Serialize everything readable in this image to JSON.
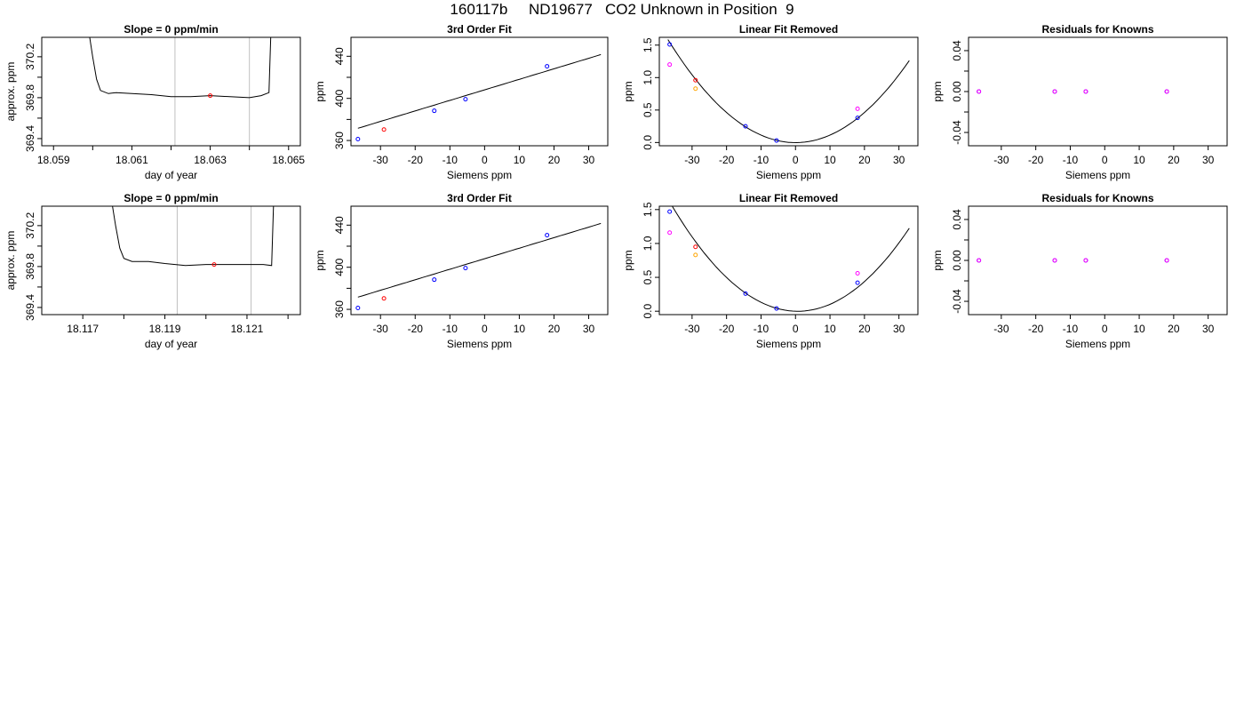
{
  "page": {
    "title": "160117b     ND19677   CO2 Unknown in Position  9"
  },
  "colors": {
    "line": "#000000",
    "grid": "#c0c0c0",
    "blue": "#0000ff",
    "red": "#ff0000",
    "magenta": "#ff00ff",
    "orange": "#ffa500"
  },
  "chart_data": [
    {
      "id": "r1-trace",
      "type": "line",
      "title": "Slope =  0  ppm/min",
      "xlabel": "day of year",
      "ylabel": "approx. ppm",
      "xlim": [
        18.0587,
        18.0653
      ],
      "ylim": [
        369.33,
        370.39
      ],
      "xticks": [
        18.059,
        18.06,
        18.061,
        18.062,
        18.063,
        18.064,
        18.065
      ],
      "xtick_labels": [
        "18.059",
        "",
        "18.061",
        "",
        "18.063",
        "",
        "18.065"
      ],
      "yticks": [
        369.4,
        369.6,
        369.8,
        370.0,
        370.2
      ],
      "ytick_labels": [
        "369.4",
        "",
        "369.8",
        "",
        "370.2"
      ],
      "vlines": [
        18.0621,
        18.064
      ],
      "trace": [
        [
          18.0599,
          370.45
        ],
        [
          18.06,
          370.2
        ],
        [
          18.0601,
          369.98
        ],
        [
          18.0602,
          369.87
        ],
        [
          18.0604,
          369.84
        ],
        [
          18.0606,
          369.85
        ],
        [
          18.061,
          369.84
        ],
        [
          18.0615,
          369.83
        ],
        [
          18.062,
          369.81
        ],
        [
          18.0625,
          369.81
        ],
        [
          18.063,
          369.82
        ],
        [
          18.0635,
          369.81
        ],
        [
          18.064,
          369.8
        ],
        [
          18.0643,
          369.82
        ],
        [
          18.0645,
          369.85
        ],
        [
          18.06455,
          370.45
        ]
      ],
      "points": [
        {
          "x": 18.063,
          "y": 369.82,
          "color": "red"
        }
      ]
    },
    {
      "id": "r1-fit",
      "type": "scatter",
      "title": "3rd Order Fit",
      "xlabel": "Siemens ppm",
      "ylabel": "ppm",
      "xlim": [
        -38.5,
        35.5
      ],
      "ylim": [
        355,
        458
      ],
      "xticks": [
        -30,
        -20,
        -10,
        0,
        10,
        20,
        30
      ],
      "xtick_labels": [
        "-30",
        "-20",
        "-10",
        "0",
        "10",
        "20",
        "30"
      ],
      "yticks": [
        360,
        380,
        400,
        420,
        440
      ],
      "ytick_labels": [
        "360",
        "",
        "400",
        "",
        "440"
      ],
      "fit": {
        "kind": "linear",
        "x0": -36.5,
        "x1": 33.5,
        "y_at_zero": 408.1,
        "slope": 1.0
      },
      "points": [
        {
          "x": -36.5,
          "y": 361.3,
          "color": "blue"
        },
        {
          "x": -29,
          "y": 370.4,
          "color": "red"
        },
        {
          "x": -14.5,
          "y": 388.2,
          "color": "blue"
        },
        {
          "x": -5.5,
          "y": 399.2,
          "color": "blue"
        },
        {
          "x": 18,
          "y": 430.5,
          "color": "blue"
        }
      ]
    },
    {
      "id": "r1-lin",
      "type": "scatter",
      "title": "Linear Fit Removed",
      "xlabel": "Siemens ppm",
      "ylabel": "ppm",
      "xlim": [
        -39.5,
        35.5
      ],
      "ylim": [
        -0.05,
        1.62
      ],
      "xticks": [
        -30,
        -20,
        -10,
        0,
        10,
        20,
        30
      ],
      "xtick_labels": [
        "-30",
        "-20",
        "-10",
        "0",
        "10",
        "20",
        "30"
      ],
      "yticks": [
        0,
        0.5,
        1.0,
        1.5
      ],
      "ytick_labels": [
        "0.0",
        "0.5",
        "1.0",
        "1.5"
      ],
      "fit": {
        "kind": "quadratic",
        "x0": -37,
        "x1": 33,
        "a": 0.00116,
        "b": 0.0,
        "c": -0.002
      },
      "points": [
        {
          "x": -36.5,
          "y": 1.51,
          "color": "blue"
        },
        {
          "x": -36.5,
          "y": 1.2,
          "color": "magenta"
        },
        {
          "x": -29,
          "y": 0.96,
          "color": "red"
        },
        {
          "x": -29,
          "y": 0.83,
          "color": "orange"
        },
        {
          "x": -14.5,
          "y": 0.25,
          "color": "blue"
        },
        {
          "x": -5.5,
          "y": 0.03,
          "color": "blue"
        },
        {
          "x": 18,
          "y": 0.38,
          "color": "blue"
        },
        {
          "x": 18,
          "y": 0.52,
          "color": "magenta"
        }
      ]
    },
    {
      "id": "r1-res",
      "type": "scatter",
      "title": "Residuals for Knowns",
      "xlabel": "Siemens ppm",
      "ylabel": "ppm",
      "xlim": [
        -39.5,
        35.5
      ],
      "ylim": [
        -0.053,
        0.053
      ],
      "xticks": [
        -30,
        -20,
        -10,
        0,
        10,
        20,
        30
      ],
      "xtick_labels": [
        "-30",
        "-20",
        "-10",
        "0",
        "10",
        "20",
        "30"
      ],
      "yticks": [
        -0.04,
        -0.02,
        0,
        0.02,
        0.04
      ],
      "ytick_labels": [
        "-0.04",
        "",
        "0.00",
        "",
        "0.04"
      ],
      "points": [
        {
          "x": -36.5,
          "y": 0,
          "color": "blue"
        },
        {
          "x": -36.5,
          "y": 0,
          "color": "magenta"
        },
        {
          "x": -14.5,
          "y": 0,
          "color": "blue"
        },
        {
          "x": -14.5,
          "y": 0,
          "color": "magenta"
        },
        {
          "x": -5.5,
          "y": 0,
          "color": "blue"
        },
        {
          "x": -5.5,
          "y": 0,
          "color": "magenta"
        },
        {
          "x": 18,
          "y": 0,
          "color": "blue"
        },
        {
          "x": 18,
          "y": 0,
          "color": "magenta"
        }
      ]
    },
    {
      "id": "r2-trace",
      "type": "line",
      "title": "Slope =  0  ppm/min",
      "xlabel": "day of year",
      "ylabel": "approx. ppm",
      "xlim": [
        18.116,
        18.1223
      ],
      "ylim": [
        369.33,
        370.39
      ],
      "xticks": [
        18.117,
        18.118,
        18.119,
        18.12,
        18.121,
        18.122
      ],
      "xtick_labels": [
        "18.117",
        "",
        "18.119",
        "",
        "18.121",
        ""
      ],
      "yticks": [
        369.4,
        369.6,
        369.8,
        370.0,
        370.2
      ],
      "ytick_labels": [
        "369.4",
        "",
        "369.8",
        "",
        "370.2"
      ],
      "vlines": [
        18.1193,
        18.1211
      ],
      "trace": [
        [
          18.1177,
          370.45
        ],
        [
          18.1178,
          370.2
        ],
        [
          18.1179,
          369.98
        ],
        [
          18.118,
          369.88
        ],
        [
          18.1182,
          369.85
        ],
        [
          18.1186,
          369.85
        ],
        [
          18.119,
          369.83
        ],
        [
          18.1195,
          369.81
        ],
        [
          18.12,
          369.82
        ],
        [
          18.1205,
          369.82
        ],
        [
          18.121,
          369.82
        ],
        [
          18.1214,
          369.82
        ],
        [
          18.1216,
          369.81
        ],
        [
          18.12165,
          370.45
        ]
      ],
      "points": [
        {
          "x": 18.1202,
          "y": 369.82,
          "color": "red"
        }
      ]
    },
    {
      "id": "r2-fit",
      "type": "scatter",
      "title": "3rd Order Fit",
      "xlabel": "Siemens ppm",
      "ylabel": "ppm",
      "xlim": [
        -38.5,
        35.5
      ],
      "ylim": [
        355,
        458
      ],
      "xticks": [
        -30,
        -20,
        -10,
        0,
        10,
        20,
        30
      ],
      "xtick_labels": [
        "-30",
        "-20",
        "-10",
        "0",
        "10",
        "20",
        "30"
      ],
      "yticks": [
        360,
        380,
        400,
        420,
        440
      ],
      "ytick_labels": [
        "360",
        "",
        "400",
        "",
        "440"
      ],
      "fit": {
        "kind": "linear",
        "x0": -36.5,
        "x1": 33.5,
        "y_at_zero": 408.1,
        "slope": 1.0
      },
      "points": [
        {
          "x": -36.5,
          "y": 361.3,
          "color": "blue"
        },
        {
          "x": -29,
          "y": 370.4,
          "color": "red"
        },
        {
          "x": -14.5,
          "y": 388.2,
          "color": "blue"
        },
        {
          "x": -5.5,
          "y": 399.2,
          "color": "blue"
        },
        {
          "x": 18,
          "y": 430.5,
          "color": "blue"
        }
      ]
    },
    {
      "id": "r2-lin",
      "type": "scatter",
      "title": "Linear Fit Removed",
      "xlabel": "Siemens ppm",
      "ylabel": "ppm",
      "xlim": [
        -39.5,
        35.5
      ],
      "ylim": [
        -0.05,
        1.55
      ],
      "xticks": [
        -30,
        -20,
        -10,
        0,
        10,
        20,
        30
      ],
      "xtick_labels": [
        "-30",
        "-20",
        "-10",
        "0",
        "10",
        "20",
        "30"
      ],
      "yticks": [
        0,
        0.5,
        1.0,
        1.5
      ],
      "ytick_labels": [
        "0.0",
        "0.5",
        "1.0",
        "1.5"
      ],
      "fit": {
        "kind": "quadratic",
        "x0": -37,
        "x1": 33,
        "a": 0.00117,
        "b": -0.0015,
        "c": 0.0
      },
      "points": [
        {
          "x": -36.5,
          "y": 1.47,
          "color": "blue"
        },
        {
          "x": -36.5,
          "y": 1.16,
          "color": "magenta"
        },
        {
          "x": -29,
          "y": 0.95,
          "color": "red"
        },
        {
          "x": -29,
          "y": 0.83,
          "color": "orange"
        },
        {
          "x": -14.5,
          "y": 0.26,
          "color": "blue"
        },
        {
          "x": -5.5,
          "y": 0.04,
          "color": "blue"
        },
        {
          "x": 18,
          "y": 0.42,
          "color": "blue"
        },
        {
          "x": 18,
          "y": 0.56,
          "color": "magenta"
        }
      ]
    },
    {
      "id": "r2-res",
      "type": "scatter",
      "title": "Residuals for Knowns",
      "xlabel": "Siemens ppm",
      "ylabel": "ppm",
      "xlim": [
        -39.5,
        35.5
      ],
      "ylim": [
        -0.053,
        0.053
      ],
      "xticks": [
        -30,
        -20,
        -10,
        0,
        10,
        20,
        30
      ],
      "xtick_labels": [
        "-30",
        "-20",
        "-10",
        "0",
        "10",
        "20",
        "30"
      ],
      "yticks": [
        -0.04,
        -0.02,
        0,
        0.02,
        0.04
      ],
      "ytick_labels": [
        "-0.04",
        "",
        "0.00",
        "",
        "0.04"
      ],
      "points": [
        {
          "x": -36.5,
          "y": 0,
          "color": "blue"
        },
        {
          "x": -36.5,
          "y": 0,
          "color": "magenta"
        },
        {
          "x": -14.5,
          "y": 0,
          "color": "blue"
        },
        {
          "x": -14.5,
          "y": 0,
          "color": "magenta"
        },
        {
          "x": -5.5,
          "y": 0,
          "color": "blue"
        },
        {
          "x": -5.5,
          "y": 0,
          "color": "magenta"
        },
        {
          "x": 18,
          "y": 0,
          "color": "blue"
        },
        {
          "x": 18,
          "y": 0,
          "color": "magenta"
        }
      ]
    }
  ]
}
